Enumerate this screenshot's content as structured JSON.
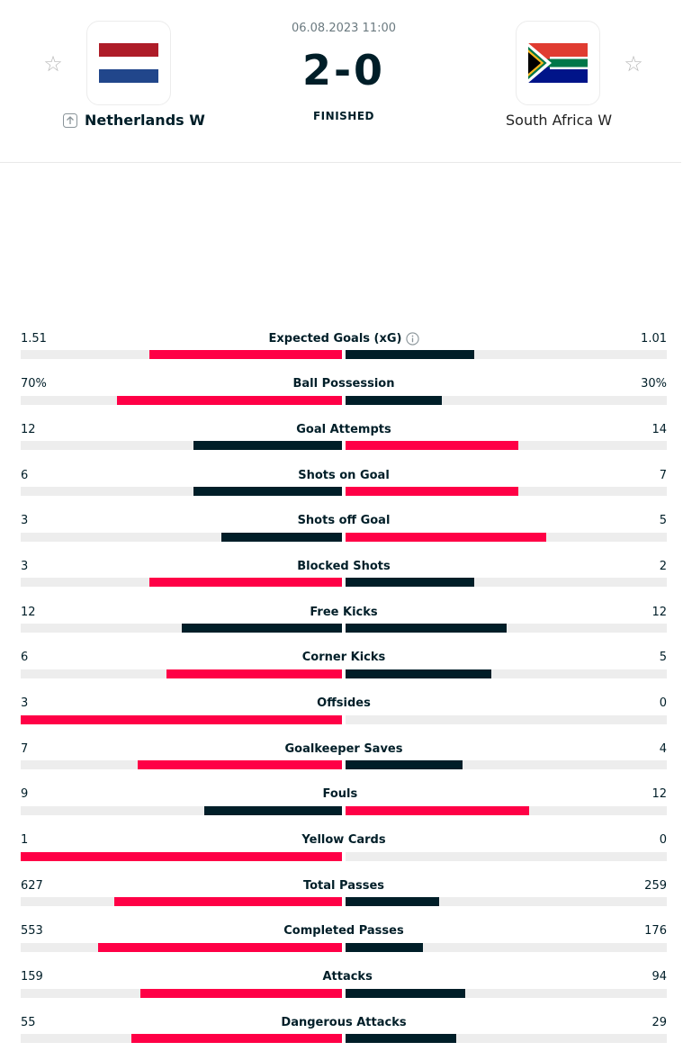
{
  "match": {
    "datetime": "06.08.2023 11:00",
    "score": "2-0",
    "status": "FINISHED",
    "home_team": "Netherlands W",
    "away_team": "South Africa W"
  },
  "colors": {
    "winner": "#ff0046",
    "loser": "#001e28",
    "track": "#ededed"
  },
  "stats": [
    {
      "name": "Expected Goals (xG)",
      "home": "1.51",
      "away": "1.01",
      "home_num": 1.51,
      "away_num": 1.01,
      "info": true
    },
    {
      "name": "Ball Possession",
      "home": "70%",
      "away": "30%",
      "home_num": 70,
      "away_num": 30
    },
    {
      "name": "Goal Attempts",
      "home": "12",
      "away": "14",
      "home_num": 12,
      "away_num": 14
    },
    {
      "name": "Shots on Goal",
      "home": "6",
      "away": "7",
      "home_num": 6,
      "away_num": 7
    },
    {
      "name": "Shots off Goal",
      "home": "3",
      "away": "5",
      "home_num": 3,
      "away_num": 5
    },
    {
      "name": "Blocked Shots",
      "home": "3",
      "away": "2",
      "home_num": 3,
      "away_num": 2
    },
    {
      "name": "Free Kicks",
      "home": "12",
      "away": "12",
      "home_num": 12,
      "away_num": 12
    },
    {
      "name": "Corner Kicks",
      "home": "6",
      "away": "5",
      "home_num": 6,
      "away_num": 5
    },
    {
      "name": "Offsides",
      "home": "3",
      "away": "0",
      "home_num": 3,
      "away_num": 0
    },
    {
      "name": "Goalkeeper Saves",
      "home": "7",
      "away": "4",
      "home_num": 7,
      "away_num": 4
    },
    {
      "name": "Fouls",
      "home": "9",
      "away": "12",
      "home_num": 9,
      "away_num": 12
    },
    {
      "name": "Yellow Cards",
      "home": "1",
      "away": "0",
      "home_num": 1,
      "away_num": 0
    },
    {
      "name": "Total Passes",
      "home": "627",
      "away": "259",
      "home_num": 627,
      "away_num": 259
    },
    {
      "name": "Completed Passes",
      "home": "553",
      "away": "176",
      "home_num": 553,
      "away_num": 176
    },
    {
      "name": "Attacks",
      "home": "159",
      "away": "94",
      "home_num": 159,
      "away_num": 94
    },
    {
      "name": "Dangerous Attacks",
      "home": "55",
      "away": "29",
      "home_num": 55,
      "away_num": 29
    }
  ]
}
